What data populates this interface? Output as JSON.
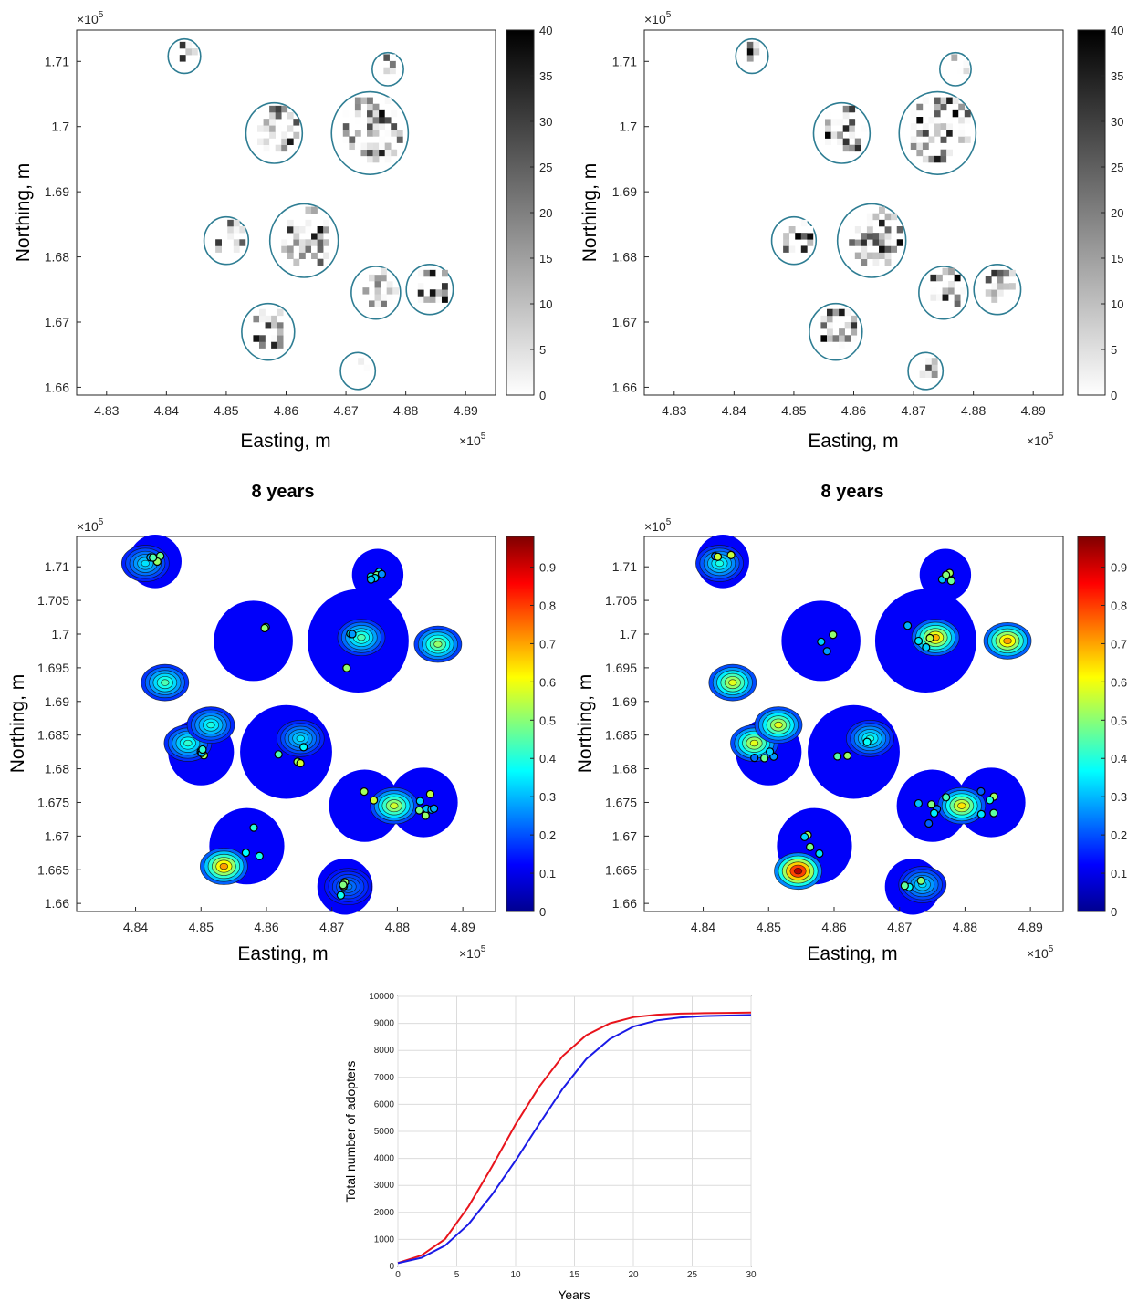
{
  "figure": {
    "title_left": "8 years",
    "title_right": "8 years"
  },
  "chart_data": [
    {
      "id": "top-left",
      "type": "heatmap",
      "title": "",
      "xlabel": "Easting, m",
      "ylabel": "Northing, m",
      "x_exponent_label": "×10",
      "x_exponent": "5",
      "y_exponent_label": "×10",
      "y_exponent": "5",
      "xlim": [
        4.825,
        4.895
      ],
      "ylim": [
        1.6588,
        1.7148
      ],
      "xticks": [
        "4.83",
        "4.84",
        "4.85",
        "4.86",
        "4.87",
        "4.88",
        "4.89"
      ],
      "yticks": [
        "1.66",
        "1.67",
        "1.68",
        "1.69",
        "1.7",
        "1.71"
      ],
      "colormap": "gray (white → black)",
      "colorbar_ticks": [
        "0",
        "5",
        "10",
        "15",
        "20",
        "25",
        "30",
        "35",
        "40"
      ],
      "colorbar_range": [
        0,
        40
      ],
      "boundary_color": "#2e7d93",
      "clusters": [
        {
          "x": 4.843,
          "y": 1.7108,
          "r": 0.0018
        },
        {
          "x": 4.858,
          "y": 1.699,
          "r": 0.0038
        },
        {
          "x": 4.874,
          "y": 1.699,
          "r": 0.0055
        },
        {
          "x": 4.877,
          "y": 1.7088,
          "r": 0.0017
        },
        {
          "x": 4.863,
          "y": 1.6825,
          "r": 0.0048
        },
        {
          "x": 4.85,
          "y": 1.6825,
          "r": 0.0028
        },
        {
          "x": 4.875,
          "y": 1.6745,
          "r": 0.0032
        },
        {
          "x": 4.884,
          "y": 1.675,
          "r": 0.003
        },
        {
          "x": 4.857,
          "y": 1.6685,
          "r": 0.0035
        },
        {
          "x": 4.872,
          "y": 1.6625,
          "r": 0.002
        }
      ]
    },
    {
      "id": "top-right",
      "type": "heatmap",
      "title": "",
      "xlabel": "Easting, m",
      "ylabel": "Northing, m",
      "x_exponent_label": "×10",
      "x_exponent": "5",
      "y_exponent_label": "×10",
      "y_exponent": "5",
      "xlim": [
        4.825,
        4.895
      ],
      "ylim": [
        1.6588,
        1.7148
      ],
      "xticks": [
        "4.83",
        "4.84",
        "4.85",
        "4.86",
        "4.87",
        "4.88",
        "4.89"
      ],
      "yticks": [
        "1.66",
        "1.67",
        "1.68",
        "1.69",
        "1.7",
        "1.71"
      ],
      "colormap": "gray (white → black)",
      "colorbar_ticks": [
        "0",
        "5",
        "10",
        "15",
        "20",
        "25",
        "30",
        "35",
        "40"
      ],
      "colorbar_range": [
        0,
        40
      ],
      "boundary_color": "#2e7d93"
    },
    {
      "id": "mid-left",
      "type": "heatmap",
      "title": "8 years",
      "xlabel": "Easting, m",
      "ylabel": "Northing, m",
      "x_exponent_label": "×10",
      "x_exponent": "5",
      "y_exponent_label": "×10",
      "y_exponent": "5",
      "xlim": [
        4.831,
        4.895
      ],
      "ylim": [
        1.6588,
        1.7145
      ],
      "xticks": [
        "4.84",
        "4.85",
        "4.86",
        "4.87",
        "4.88",
        "4.89"
      ],
      "yticks": [
        "1.66",
        "1.665",
        "1.67",
        "1.675",
        "1.68",
        "1.685",
        "1.69",
        "1.695",
        "1.7",
        "1.705",
        "1.71"
      ],
      "colormap": "jet",
      "colorbar_ticks": [
        "0",
        "0.1",
        "0.2",
        "0.3",
        "0.4",
        "0.5",
        "0.6",
        "0.7",
        "0.8",
        "0.9"
      ],
      "colorbar_range": [
        0,
        0.98
      ],
      "hotspots": [
        {
          "x": 4.8795,
          "y": 1.6745,
          "v": 0.58
        },
        {
          "x": 4.8862,
          "y": 1.6985,
          "v": 0.52
        },
        {
          "x": 4.848,
          "y": 1.6838,
          "v": 0.42
        },
        {
          "x": 4.8535,
          "y": 1.6655,
          "v": 0.72
        },
        {
          "x": 4.8445,
          "y": 1.6928,
          "v": 0.45
        },
        {
          "x": 4.8415,
          "y": 1.7105,
          "v": 0.35
        },
        {
          "x": 4.8745,
          "y": 1.6995,
          "v": 0.45
        },
        {
          "x": 4.8652,
          "y": 1.6845,
          "v": 0.35
        },
        {
          "x": 4.8515,
          "y": 1.6865,
          "v": 0.4
        },
        {
          "x": 4.8725,
          "y": 1.6625,
          "v": 0.25
        }
      ]
    },
    {
      "id": "mid-right",
      "type": "heatmap",
      "title": "8 years",
      "xlabel": "Easting, m",
      "ylabel": "Northing, m",
      "x_exponent_label": "×10",
      "x_exponent": "5",
      "y_exponent_label": "×10",
      "y_exponent": "5",
      "xlim": [
        4.831,
        4.895
      ],
      "ylim": [
        1.6588,
        1.7145
      ],
      "xticks": [
        "4.84",
        "4.85",
        "4.86",
        "4.87",
        "4.88",
        "4.89"
      ],
      "yticks": [
        "1.66",
        "1.665",
        "1.67",
        "1.675",
        "1.68",
        "1.685",
        "1.69",
        "1.695",
        "1.7",
        "1.705",
        "1.71"
      ],
      "colormap": "jet",
      "colorbar_ticks": [
        "0",
        "0.1",
        "0.2",
        "0.3",
        "0.4",
        "0.5",
        "0.6",
        "0.7",
        "0.8",
        "0.9"
      ],
      "colorbar_range": [
        0,
        0.98
      ],
      "hotspots": [
        {
          "x": 4.8795,
          "y": 1.6745,
          "v": 0.65
        },
        {
          "x": 4.8865,
          "y": 1.699,
          "v": 0.72
        },
        {
          "x": 4.8478,
          "y": 1.6838,
          "v": 0.6
        },
        {
          "x": 4.8545,
          "y": 1.6648,
          "v": 0.95
        },
        {
          "x": 4.8445,
          "y": 1.6928,
          "v": 0.6
        },
        {
          "x": 4.8425,
          "y": 1.7105,
          "v": 0.4
        },
        {
          "x": 4.8755,
          "y": 1.6995,
          "v": 0.7
        },
        {
          "x": 4.8655,
          "y": 1.6845,
          "v": 0.4
        },
        {
          "x": 4.8515,
          "y": 1.6865,
          "v": 0.6
        },
        {
          "x": 4.8735,
          "y": 1.6628,
          "v": 0.35
        }
      ]
    },
    {
      "id": "bottom",
      "type": "line",
      "title": "",
      "xlabel": "Years",
      "ylabel": "Total number of adopters",
      "xlim": [
        0,
        30
      ],
      "ylim": [
        0,
        10000
      ],
      "xticks": [
        "0",
        "5",
        "10",
        "15",
        "20",
        "25",
        "30"
      ],
      "yticks": [
        "0",
        "1000",
        "2000",
        "3000",
        "4000",
        "5000",
        "6000",
        "7000",
        "8000",
        "9000",
        "10000"
      ],
      "grid": true,
      "series": [
        {
          "color": "#e8141c",
          "x": [
            0,
            2,
            4,
            6,
            8,
            10,
            12,
            14,
            16,
            18,
            20,
            22,
            24,
            26,
            28,
            30
          ],
          "values": [
            130,
            410,
            1010,
            2220,
            3700,
            5260,
            6650,
            7790,
            8560,
            9000,
            9230,
            9320,
            9360,
            9380,
            9390,
            9400
          ]
        },
        {
          "color": "#1a1ae6",
          "x": [
            0,
            2,
            4,
            6,
            8,
            10,
            12,
            14,
            16,
            18,
            20,
            22,
            24,
            26,
            28,
            30
          ],
          "values": [
            120,
            320,
            770,
            1560,
            2660,
            3920,
            5270,
            6580,
            7680,
            8420,
            8880,
            9110,
            9220,
            9270,
            9290,
            9310
          ]
        }
      ]
    }
  ]
}
